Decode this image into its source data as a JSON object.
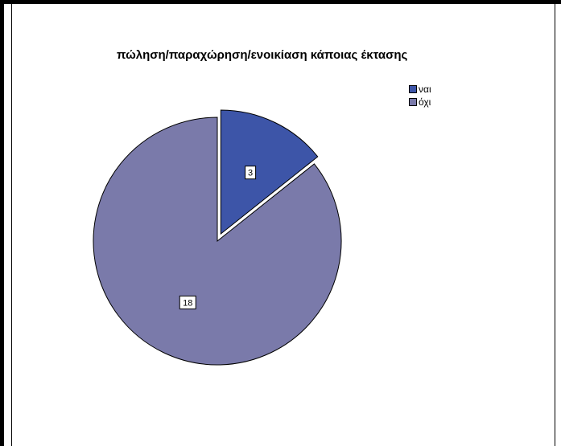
{
  "chart_data": {
    "type": "pie",
    "title": "πώληση/παραχώρηση/ενοικίαση κάποιας έκτασης",
    "categories": [
      "ναι",
      "όχι"
    ],
    "values": [
      3,
      18
    ],
    "data_labels": [
      "3",
      "18"
    ],
    "colors": [
      "#3d55a8",
      "#7a7aaa"
    ],
    "exploded": [
      true,
      false
    ],
    "legend": {
      "position": "top-right",
      "entries": [
        "ναι",
        "όχι"
      ]
    }
  }
}
